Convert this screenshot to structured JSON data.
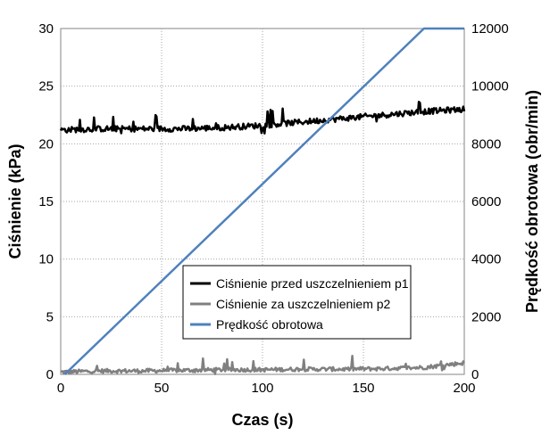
{
  "chart_data": {
    "type": "line",
    "xlabel": "Czas (s)",
    "ylabel": "Ciśnienie (kPa)",
    "y2label": "Prędkość obrotowa (obr/min)",
    "xlim": [
      0,
      200
    ],
    "ylim": [
      0,
      30
    ],
    "y2lim": [
      0,
      12000
    ],
    "x_ticks": [
      "0",
      "50",
      "100",
      "150",
      "200"
    ],
    "y_ticks": [
      "0",
      "5",
      "10",
      "15",
      "20",
      "25",
      "30"
    ],
    "y2_ticks": [
      "0",
      "2000",
      "4000",
      "6000",
      "8000",
      "10000",
      "12000"
    ],
    "grid": true,
    "legend_position": "center-bottom",
    "series": [
      {
        "name": "Ciśnienie przed uszczelnieniem p1",
        "axis": "left",
        "color": "#000000",
        "x": [
          0,
          20,
          40,
          60,
          80,
          100,
          120,
          140,
          160,
          180,
          200
        ],
        "y": [
          21.2,
          21.3,
          21.3,
          21.3,
          21.4,
          21.6,
          21.9,
          22.2,
          22.5,
          22.8,
          23.0
        ]
      },
      {
        "name": "Ciśnienie za uszczelnieniem p2",
        "axis": "left",
        "color": "#808080",
        "x": [
          0,
          20,
          40,
          60,
          80,
          100,
          120,
          140,
          160,
          180,
          200
        ],
        "y": [
          0.2,
          0.3,
          0.3,
          0.35,
          0.4,
          0.4,
          0.45,
          0.45,
          0.5,
          0.6,
          1.0
        ]
      },
      {
        "name": "Prędkość obrotowa",
        "axis": "right",
        "color": "#4f81bd",
        "x": [
          2,
          180,
          182,
          200
        ],
        "y": [
          0,
          12000,
          12000,
          12000
        ]
      }
    ]
  }
}
